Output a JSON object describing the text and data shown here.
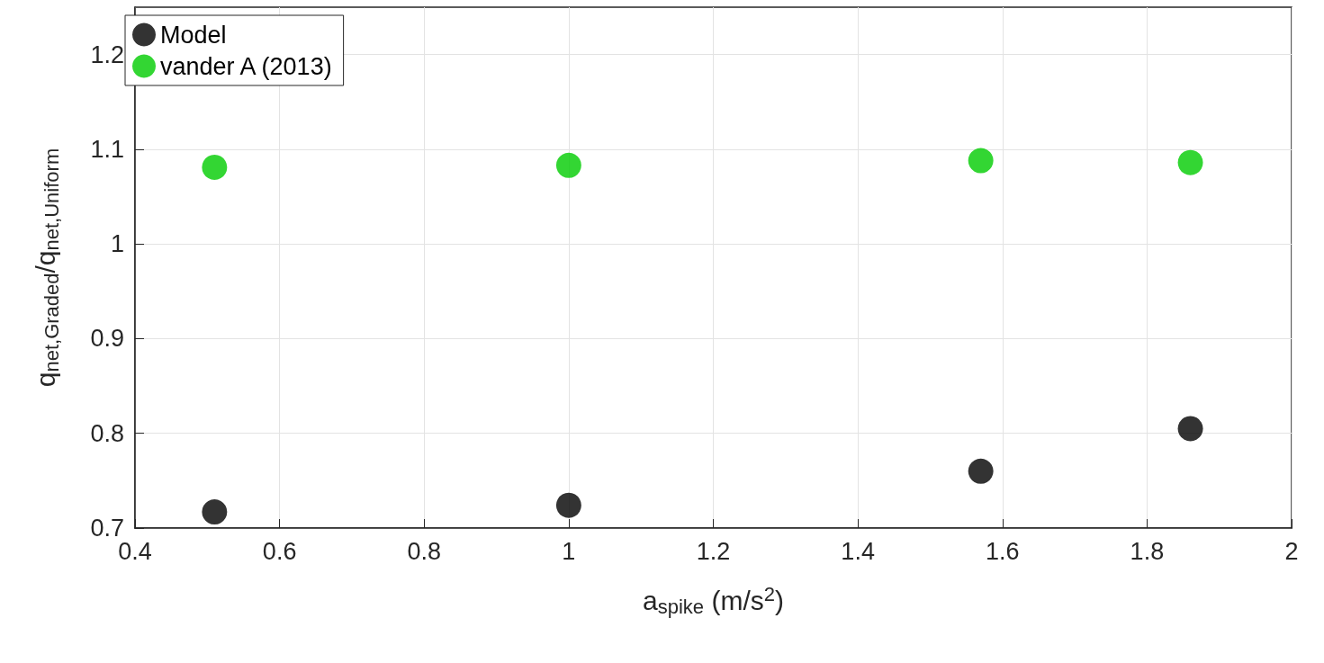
{
  "chart_data": {
    "type": "scatter",
    "xlabel": "a$_{spike}$ (m/s$^{2}$)",
    "ylabel": "q$_{net,Graded}$/q$_{net,Uniform}$",
    "x": [
      0.51,
      1.0,
      1.57,
      1.86
    ],
    "series": [
      {
        "name": "Model",
        "color": "#000000",
        "values": [
          0.717,
          0.724,
          0.76,
          0.805
        ]
      },
      {
        "name": "vander A (2013)",
        "color": "#00cc00",
        "values": [
          1.081,
          1.083,
          1.088,
          1.086
        ]
      }
    ],
    "xlim": [
      0.4,
      2
    ],
    "xticks": [
      0.4,
      0.6,
      0.8,
      1,
      1.2,
      1.4,
      1.6,
      1.8,
      2
    ],
    "ylim": [
      0.7,
      1.25
    ],
    "yticks": [
      0.7,
      0.8,
      0.9,
      1,
      1.1,
      1.2
    ],
    "grid": true,
    "legend": "top left",
    "marker": "circle"
  }
}
